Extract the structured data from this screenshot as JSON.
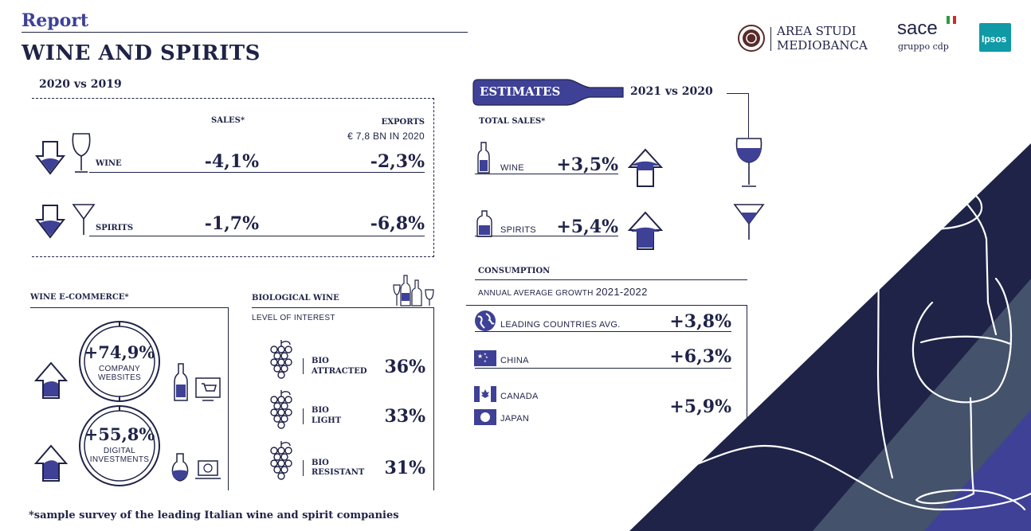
{
  "header": {
    "report_label": "Report",
    "title": "WINE AND SPIRITS",
    "logos": {
      "mediobanca_line1": "AREA STUDI",
      "mediobanca_line2": "MEDIOBANCA",
      "sace_name": "sace",
      "sace_sub": "gruppo cdp",
      "ipsos": "Ipsos"
    }
  },
  "section_2020": {
    "heading": "2020 vs 2019",
    "col_sales": "SALES*",
    "col_exports": "EXPORTS",
    "exports_note": "€ 7,8 BN IN 2020",
    "rows": [
      {
        "label": "WINE",
        "sales": "-4,1%",
        "exports": "-2,3%"
      },
      {
        "label": "SPIRITS",
        "sales": "-1,7%",
        "exports": "-6,8%"
      }
    ]
  },
  "ecommerce": {
    "heading": "WINE E-COMMERCE*",
    "items": [
      {
        "value": "+74,9%",
        "label_line1": "COMPANY",
        "label_line2": "WEBSITES"
      },
      {
        "value": "+55,8%",
        "label_line1": "DIGITAL",
        "label_line2": "INVESTMENTS"
      }
    ]
  },
  "bio": {
    "heading": "BIOLOGICAL WINE",
    "subheading": "LEVEL OF INTEREST",
    "items": [
      {
        "line1": "BIO",
        "line2": "ATTRACTED",
        "value": "36%"
      },
      {
        "line1": "BIO",
        "line2": "LIGHT",
        "value": "33%"
      },
      {
        "line1": "BIO",
        "line2": "RESISTANT",
        "value": "31%"
      }
    ]
  },
  "estimates": {
    "badge": "ESTIMATES",
    "period": "2021 vs 2020",
    "total_sales_label": "TOTAL SALES*",
    "rows": [
      {
        "label": "WINE",
        "value": "+3,5%"
      },
      {
        "label": "SPIRITS",
        "value": "+5,4%"
      }
    ],
    "consumption_heading": "CONSUMPTION",
    "consumption_sub_a": "ANNUAL AVERAGE GROWTH ",
    "consumption_sub_b": "2021-2022",
    "countries": [
      {
        "label": "LEADING COUNTRIES AVG.",
        "value": "+3,8%"
      },
      {
        "label": "CHINA",
        "value": "+6,3%"
      },
      {
        "label": "CANADA",
        "value": ""
      },
      {
        "label": "JAPAN",
        "value": "+5,9%"
      }
    ]
  },
  "footnote": "*sample survey of the leading Italian wine and spirit companies",
  "colors": {
    "navy": "#1f2347",
    "accent_blue": "#3e4196",
    "slate": "#44526b",
    "gray": "#7a7a7a"
  }
}
